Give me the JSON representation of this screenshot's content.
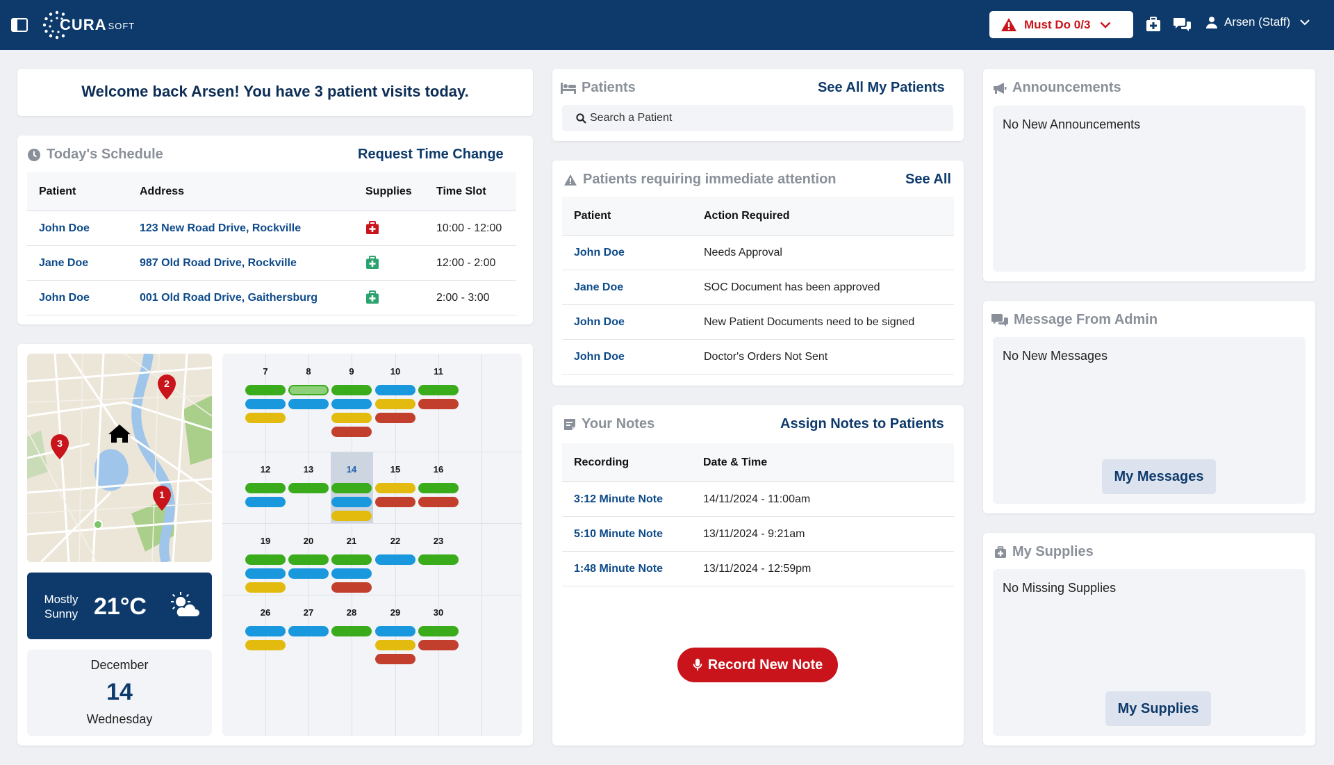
{
  "header": {
    "logo_main": "CURA",
    "logo_sub": "SOFT",
    "must_do_label": "Must Do 0/3",
    "user_name": "Arsen (Staff)"
  },
  "welcome": {
    "message": "Welcome back Arsen! You have 3 patient visits today."
  },
  "schedule": {
    "title": "Today's Schedule",
    "action": "Request Time Change",
    "columns": [
      "Patient",
      "Address",
      "Supplies",
      "Time Slot"
    ],
    "rows": [
      {
        "patient": "John Doe",
        "address": "123 New Road Drive, Rockville",
        "supplies_status": "missing",
        "time": "10:00 - 12:00"
      },
      {
        "patient": "Jane Doe",
        "address": "987 Old Road Drive, Rockville",
        "supplies_status": "ok",
        "time": "12:00 - 2:00"
      },
      {
        "patient": "John Doe",
        "address": "001 Old Road Drive, Gaithersburg",
        "supplies_status": "ok",
        "time": "2:00 - 3:00"
      }
    ]
  },
  "map": {
    "markers": [
      "1",
      "2",
      "3"
    ]
  },
  "weather": {
    "condition": "Mostly Sunny",
    "temperature": "21°C"
  },
  "date": {
    "month": "December",
    "day": "14",
    "weekday": "Wednesday"
  },
  "calendar": {
    "today": "14",
    "colors": {
      "green": "#3aab1b",
      "blue": "#1a98de",
      "yellow": "#e3bb0e",
      "red": "#c23f2d",
      "lightgreen": "#8fd17a"
    },
    "weeks": [
      [
        {
          "day": "7",
          "pills": [
            "green",
            "blue",
            "yellow"
          ]
        },
        {
          "day": "8",
          "pills": [
            "lightgreen",
            "blue"
          ]
        },
        {
          "day": "9",
          "pills": [
            "green",
            "blue",
            "yellow",
            "red"
          ]
        },
        {
          "day": "10",
          "pills": [
            "blue",
            "yellow",
            "red"
          ]
        },
        {
          "day": "11",
          "pills": [
            "green",
            "red"
          ]
        }
      ],
      [
        {
          "day": "12",
          "pills": [
            "green",
            "blue"
          ]
        },
        {
          "day": "13",
          "pills": [
            "green"
          ]
        },
        {
          "day": "14",
          "pills": [
            "green",
            "blue",
            "yellow"
          ]
        },
        {
          "day": "15",
          "pills": [
            "yellow",
            "red"
          ]
        },
        {
          "day": "16",
          "pills": [
            "green",
            "red"
          ]
        }
      ],
      [
        {
          "day": "19",
          "pills": [
            "green",
            "blue",
            "yellow"
          ]
        },
        {
          "day": "20",
          "pills": [
            "green",
            "blue"
          ]
        },
        {
          "day": "21",
          "pills": [
            "green",
            "blue",
            "red"
          ]
        },
        {
          "day": "22",
          "pills": [
            "blue"
          ]
        },
        {
          "day": "23",
          "pills": [
            "green"
          ]
        }
      ],
      [
        {
          "day": "26",
          "pills": [
            "blue",
            "yellow"
          ]
        },
        {
          "day": "27",
          "pills": [
            "blue"
          ]
        },
        {
          "day": "28",
          "pills": [
            "green"
          ]
        },
        {
          "day": "29",
          "pills": [
            "blue",
            "yellow",
            "red"
          ]
        },
        {
          "day": "30",
          "pills": [
            "green",
            "red"
          ]
        }
      ]
    ]
  },
  "patients": {
    "title": "Patients",
    "action": "See All My Patients",
    "search_placeholder": "Search a Patient"
  },
  "attention": {
    "title": "Patients requiring immediate attention",
    "action": "See All",
    "columns": [
      "Patient",
      "Action Required"
    ],
    "rows": [
      {
        "patient": "John Doe",
        "action": "Needs Approval"
      },
      {
        "patient": "Jane Doe",
        "action": "SOC Document has been approved"
      },
      {
        "patient": "John Doe",
        "action": "New Patient Documents need to be signed"
      },
      {
        "patient": "John Doe",
        "action": "Doctor's Orders Not Sent"
      }
    ]
  },
  "notes": {
    "title": "Your Notes",
    "action": "Assign Notes to Patients",
    "columns": [
      "Recording",
      "Date & Time"
    ],
    "rows": [
      {
        "recording": "3:12 Minute Note",
        "datetime": "14/11/2024 - 11:00am"
      },
      {
        "recording": "5:10 Minute Note",
        "datetime": "13/11/2024 - 9:21am"
      },
      {
        "recording": "1:48 Minute Note",
        "datetime": "13/11/2024 - 12:59pm"
      }
    ],
    "record_button": "Record New Note"
  },
  "announcements": {
    "title": "Announcements",
    "empty": "No New Announcements"
  },
  "admin_messages": {
    "title": "Message From Admin",
    "empty": "No New Messages",
    "button": "My Messages"
  },
  "supplies": {
    "title": "My Supplies",
    "empty": "No Missing Supplies",
    "button": "My Supplies"
  }
}
